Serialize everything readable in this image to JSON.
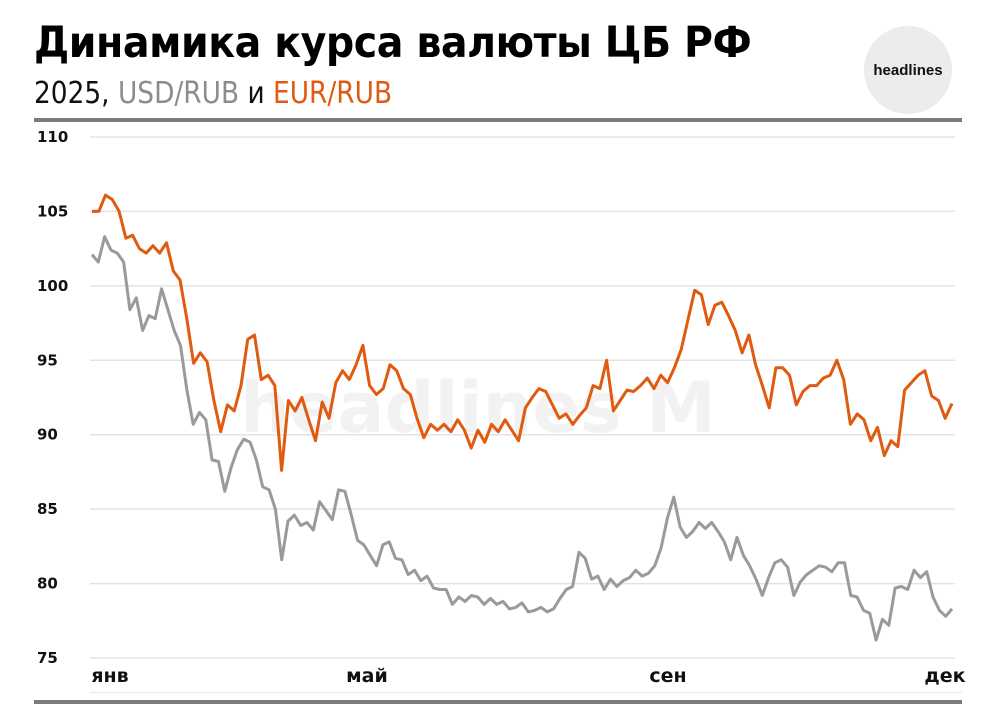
{
  "header": {
    "title": "Динамика курса валюты ЦБ РФ",
    "subtitle_year": "2025,",
    "subtitle_usd": "USD/RUB",
    "subtitle_and": "и",
    "subtitle_eur": "EUR/RUB"
  },
  "logo": {
    "text": "headlines",
    "watermark": "headlines M"
  },
  "chart_data": {
    "type": "line",
    "title": "Динамика курса валюты ЦБ РФ",
    "subtitle": "2025, USD/RUB и EUR/RUB",
    "xlabel": "",
    "ylabel": "",
    "ylim": [
      75,
      110
    ],
    "yticks": [
      "110",
      "105",
      "100",
      "95",
      "90",
      "85",
      "80",
      "75"
    ],
    "xticks": [
      "янв",
      "май",
      "сен",
      "дек"
    ],
    "grid": true,
    "colors": {
      "USD/RUB": "#9a9a9a",
      "EUR/RUB": "#e05a10"
    },
    "series": [
      {
        "name": "EUR/RUB",
        "values": [
          105.0,
          105.0,
          106.1,
          105.8,
          105.0,
          103.2,
          103.4,
          102.5,
          102.2,
          102.7,
          102.2,
          102.9,
          101.0,
          100.4,
          97.8,
          94.8,
          95.5,
          94.9,
          92.3,
          90.2,
          92.0,
          91.6,
          93.3,
          96.4,
          96.7,
          93.7,
          94.0,
          93.3,
          87.6,
          92.3,
          91.6,
          92.5,
          91.0,
          89.6,
          92.2,
          91.1,
          93.5,
          94.3,
          93.7,
          94.7,
          96.0,
          93.3,
          92.7,
          93.1,
          94.7,
          94.3,
          93.1,
          92.7,
          91.1,
          89.8,
          90.7,
          90.3,
          90.7,
          90.2,
          91.0,
          90.3,
          89.1,
          90.3,
          89.5,
          90.7,
          90.2,
          91.0,
          90.3,
          89.6,
          91.8,
          92.5,
          93.1,
          92.9,
          92.0,
          91.1,
          91.4,
          90.7,
          91.3,
          91.8,
          93.3,
          93.1,
          95.0,
          91.6,
          92.3,
          93.0,
          92.9,
          93.3,
          93.8,
          93.1,
          94.0,
          93.5,
          94.5,
          95.7,
          97.7,
          99.7,
          99.4,
          97.4,
          98.7,
          98.9,
          98.0,
          97.0,
          95.5,
          96.7,
          94.7,
          93.3,
          91.8,
          94.5,
          94.5,
          94.0,
          92.0,
          92.9,
          93.3,
          93.3,
          93.8,
          94.0,
          95.0,
          93.7,
          90.7,
          91.4,
          91.0,
          89.6,
          90.5,
          88.6,
          89.6,
          89.2,
          93.0,
          93.5,
          94.0,
          94.3,
          92.6,
          92.3,
          91.1,
          92.1
        ]
      },
      {
        "name": "USD/RUB",
        "values": [
          102.1,
          101.6,
          103.3,
          102.4,
          102.2,
          101.6,
          98.4,
          99.2,
          97.0,
          98.0,
          97.8,
          99.8,
          98.4,
          97.0,
          96.0,
          93.0,
          90.7,
          91.5,
          91.0,
          88.3,
          88.2,
          86.2,
          87.8,
          89.0,
          89.7,
          89.5,
          88.3,
          86.5,
          86.3,
          85.0,
          81.6,
          84.2,
          84.6,
          83.9,
          84.1,
          83.6,
          85.5,
          84.9,
          84.3,
          86.3,
          86.2,
          84.6,
          82.9,
          82.6,
          81.9,
          81.2,
          82.6,
          82.8,
          81.7,
          81.6,
          80.6,
          80.9,
          80.2,
          80.5,
          79.7,
          79.6,
          79.6,
          78.6,
          79.1,
          78.8,
          79.2,
          79.1,
          78.6,
          79.0,
          78.6,
          78.8,
          78.3,
          78.4,
          78.7,
          78.1,
          78.2,
          78.4,
          78.1,
          78.3,
          79.0,
          79.6,
          79.8,
          82.1,
          81.7,
          80.3,
          80.5,
          79.6,
          80.3,
          79.8,
          80.2,
          80.4,
          80.9,
          80.5,
          80.7,
          81.2,
          82.4,
          84.4,
          85.8,
          83.8,
          83.1,
          83.5,
          84.1,
          83.7,
          84.1,
          83.5,
          82.8,
          81.6,
          83.1,
          81.9,
          81.2,
          80.3,
          79.2,
          80.4,
          81.4,
          81.6,
          81.1,
          79.2,
          80.1,
          80.6,
          80.9,
          81.2,
          81.1,
          80.8,
          81.4,
          81.4,
          79.2,
          79.1,
          78.2,
          78.0,
          76.2,
          77.6,
          77.2,
          79.7,
          79.8,
          79.6,
          80.9,
          80.4,
          80.8,
          79.1,
          78.2,
          77.8,
          78.3
        ]
      }
    ]
  }
}
